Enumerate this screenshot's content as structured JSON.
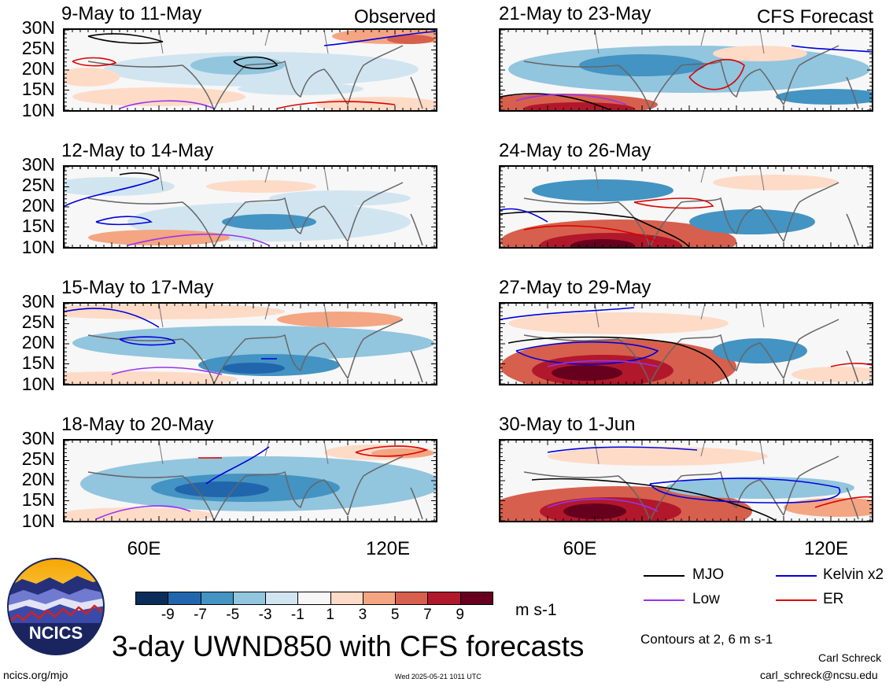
{
  "left_column": {
    "header_right": "Observed",
    "panels": [
      {
        "title": "9-May to 11-May"
      },
      {
        "title": "12-May to 14-May"
      },
      {
        "title": "15-May to 17-May"
      },
      {
        "title": "18-May to 20-May"
      }
    ]
  },
  "right_column": {
    "header_right": "CFS Forecast",
    "panels": [
      {
        "title": "21-May to 23-May"
      },
      {
        "title": "24-May to 26-May"
      },
      {
        "title": "27-May to 29-May"
      },
      {
        "title": "30-May to 1-Jun"
      }
    ]
  },
  "lat_labels": [
    "30N",
    "25N",
    "20N",
    "15N",
    "10N"
  ],
  "lon_labels": [
    "60E",
    "120E"
  ],
  "colorbar": {
    "ticks": [
      "-9",
      "-7",
      "-5",
      "-3",
      "-1",
      "1",
      "3",
      "5",
      "7",
      "9"
    ],
    "colors": [
      "#0b2d5a",
      "#2166ac",
      "#4393c3",
      "#92c5de",
      "#d1e5f0",
      "#f7f7f7",
      "#fddbc7",
      "#f4a582",
      "#d6604d",
      "#b2182b",
      "#67001f"
    ],
    "units": "m s-1"
  },
  "legend": {
    "items": [
      {
        "label": "MJO",
        "color": "#000000"
      },
      {
        "label": "Kelvin x2",
        "color": "#0000dd"
      },
      {
        "label": "Low",
        "color": "#9933ee"
      },
      {
        "label": "ER",
        "color": "#dd0000"
      }
    ],
    "contours_note": "Contours at 2, 6 m s-1"
  },
  "logo": {
    "text": "NCICS"
  },
  "main_title": "3-day UWND850 with CFS forecasts",
  "footer": {
    "left_url": "ncics.org/mjo",
    "timestamp": "Wed 2025-05-21 1011 UTC",
    "author": "Carl Schreck",
    "email": "carl_schreck@ncsu.edu"
  }
}
